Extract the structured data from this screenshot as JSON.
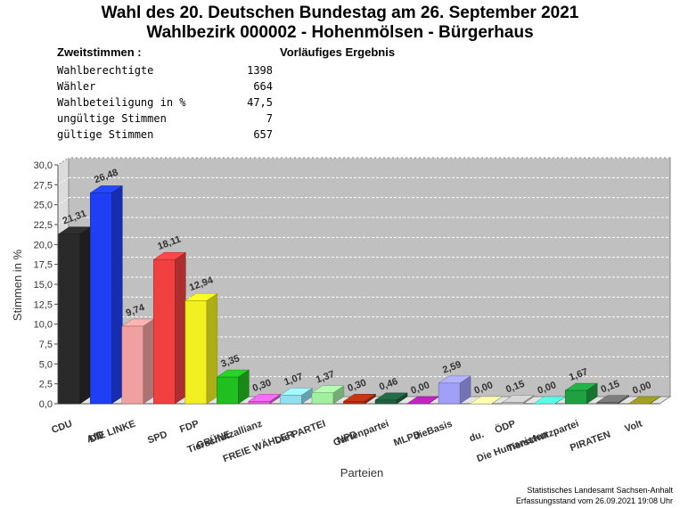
{
  "title_line1": "Wahl des 20. Deutschen Bundestag am 26. September 2021",
  "title_line2": "Wahlbezirk 000002 - Hohenmölsen - Bürgerhaus",
  "section_label": "Zweitstimmen :",
  "status_label": "Vorläufiges Ergebnis",
  "stats": [
    {
      "label": "Wahlberechtigte",
      "value": "1398"
    },
    {
      "label": "Wähler",
      "value": "664"
    },
    {
      "label": "Wahlbeteiligung in %",
      "value": "47,5"
    },
    {
      "label": "ungültige Stimmen",
      "value": "7"
    },
    {
      "label": "gültige Stimmen",
      "value": "657"
    }
  ],
  "chart_data": {
    "type": "bar",
    "xlabel": "Parteien",
    "ylabel": "Stimmen in %",
    "ylim": [
      0,
      30
    ],
    "yticks": [
      "0,0",
      "2,5",
      "5,0",
      "7,5",
      "10,0",
      "12,5",
      "15,0",
      "17,5",
      "20,0",
      "22,5",
      "25,0",
      "27,5",
      "30,0"
    ],
    "grid": true,
    "categories": [
      "CDU",
      "AfD",
      "DIE LINKE",
      "SPD",
      "FDP",
      "GRÜNE",
      "Tierschutzallianz",
      "FREIE WÄHLER",
      "Die PARTEI",
      "NPD",
      "Gartenpartei",
      "MLPD",
      "dieBasis",
      "du.",
      "ÖDP",
      "Die Humanisten",
      "Tierschutzpartei",
      "PIRATEN",
      "Volt"
    ],
    "values": [
      21.31,
      26.48,
      9.74,
      18.11,
      12.94,
      3.35,
      0.3,
      1.07,
      1.37,
      0.3,
      0.46,
      0.0,
      2.59,
      0.0,
      0.15,
      0.0,
      1.67,
      0.15,
      0.0
    ],
    "value_labels": [
      "21,31",
      "26,48",
      "9,74",
      "18,11",
      "12,94",
      "3,35",
      "0,30",
      "1,07",
      "1,37",
      "0,30",
      "0,46",
      "0,00",
      "2,59",
      "0,00",
      "0,15",
      "0,00",
      "1,67",
      "0,15",
      "0,00"
    ],
    "colors": [
      "#2a2a2a",
      "#1f3ff5",
      "#f0a0a0",
      "#f04040",
      "#f2f020",
      "#20c020",
      "#e060e0",
      "#90e0f0",
      "#a0f0a0",
      "#b03010",
      "#206040",
      "#b020b0",
      "#a0a0f8",
      "#f4f4a0",
      "#c0c0c0",
      "#50f0d0",
      "#20a040",
      "#707070",
      "#909020"
    ]
  },
  "footer_line1": "Statistisches Landesamt Sachsen-Anhalt",
  "footer_line2": "Erfassungsstand vom 26.09.2021 19:08 Uhr"
}
